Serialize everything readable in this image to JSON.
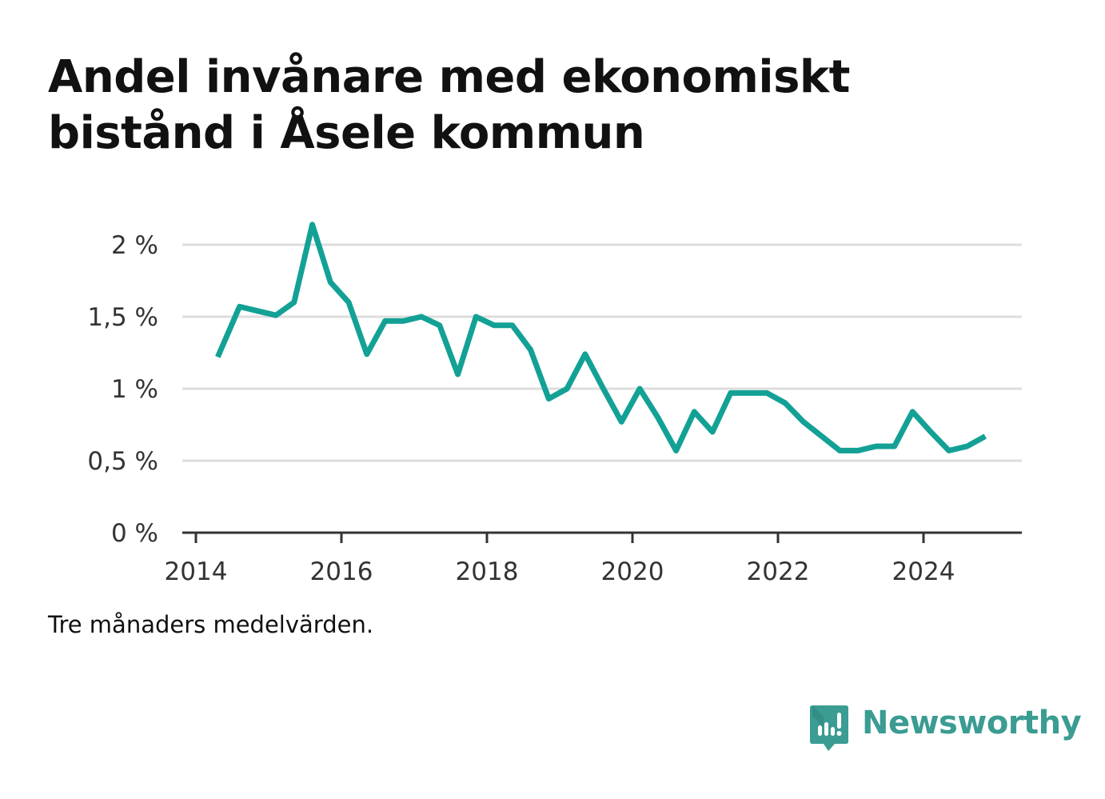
{
  "colors": {
    "line": "#13a196",
    "grid": "#dddddd",
    "axis": "#333333",
    "brand": "#3a9c93"
  },
  "chart_data": {
    "type": "line",
    "title": "Andel invånare med ekonomiskt bistånd i Åsele kommun",
    "caption": "Tre månaders medelvärden.",
    "xlabel": "",
    "ylabel": "",
    "xlim": [
      2013.9,
      2025.6
    ],
    "ylim": [
      0,
      2
    ],
    "grid": true,
    "y_ticks": [
      {
        "value": 0,
        "label": "0 %"
      },
      {
        "value": 0.5,
        "label": "0,5 %"
      },
      {
        "value": 1,
        "label": "1 %"
      },
      {
        "value": 1.5,
        "label": "1,5 %"
      },
      {
        "value": 2,
        "label": "2 %"
      }
    ],
    "x_ticks": [
      {
        "value": 2014,
        "label": "2014"
      },
      {
        "value": 2016,
        "label": "2016"
      },
      {
        "value": 2018,
        "label": "2018"
      },
      {
        "value": 2020,
        "label": "2020"
      },
      {
        "value": 2022,
        "label": "2022"
      },
      {
        "value": 2024,
        "label": "2024"
      }
    ],
    "series": [
      {
        "x": [
          2014.3,
          2014.6,
          2014.85,
          2015.1,
          2015.35,
          2015.6,
          2015.85,
          2016.1,
          2016.35,
          2016.6,
          2016.85,
          2017.1,
          2017.35,
          2017.6,
          2017.85,
          2018.1,
          2018.35,
          2018.6,
          2018.85,
          2019.1,
          2019.35,
          2019.6,
          2019.85,
          2020.1,
          2020.35,
          2020.6,
          2020.85,
          2021.1,
          2021.35,
          2021.6,
          2021.85,
          2022.1,
          2022.35,
          2022.6,
          2022.85,
          2023.1,
          2023.35,
          2023.6,
          2023.85,
          2024.1,
          2024.35,
          2024.6,
          2024.85
        ],
        "y": [
          1.22,
          1.57,
          1.54,
          1.51,
          1.6,
          2.14,
          1.74,
          1.6,
          1.24,
          1.47,
          1.47,
          1.5,
          1.44,
          1.1,
          1.5,
          1.44,
          1.44,
          1.27,
          0.93,
          1.0,
          1.24,
          1.0,
          0.77,
          1.0,
          0.8,
          0.57,
          0.84,
          0.7,
          0.97,
          0.97,
          0.97,
          0.9,
          0.77,
          0.67,
          0.57,
          0.57,
          0.6,
          0.6,
          0.84,
          0.7,
          0.57,
          0.6,
          0.67
        ]
      }
    ]
  },
  "brand": {
    "name": "Newsworthy",
    "logo_icon": "bar-chart-speech-bubble-icon"
  }
}
